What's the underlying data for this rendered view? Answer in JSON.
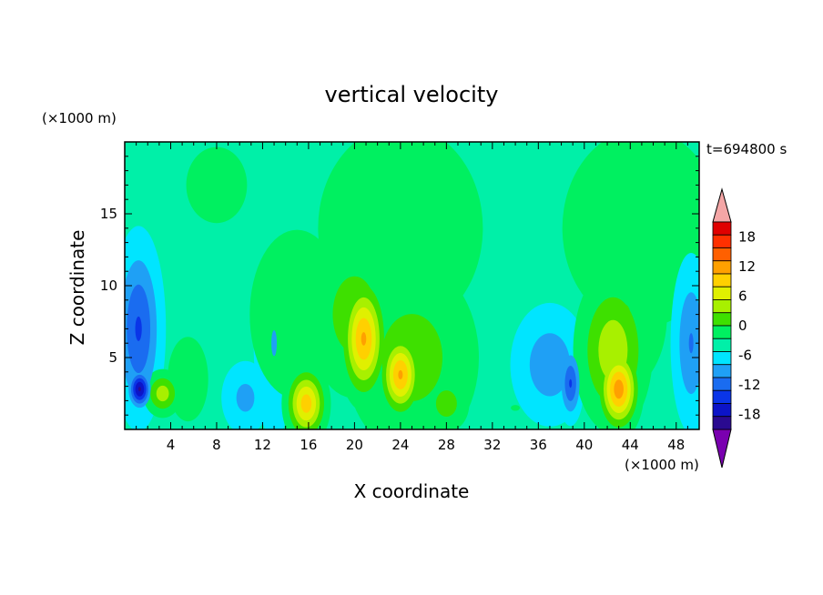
{
  "chart_data": {
    "type": "heatmap",
    "title": "vertical velocity",
    "xlabel": "X coordinate",
    "ylabel": "Z coordinate",
    "x_unit": "(×1000 m)",
    "y_unit": "(×1000 m)",
    "time_label": "t=694800 s",
    "xlim": [
      0,
      50
    ],
    "ylim": [
      0,
      20
    ],
    "x_ticks": [
      4,
      8,
      12,
      16,
      20,
      24,
      28,
      32,
      36,
      40,
      44,
      48
    ],
    "y_ticks": [
      5,
      10,
      15
    ],
    "colorbar": {
      "ticks": [
        18,
        12,
        6,
        0,
        -6,
        -12,
        -18
      ],
      "colors": [
        "#7a00b0",
        "#2a0a90",
        "#0c14c8",
        "#0a35e8",
        "#1a6cf0",
        "#1fa0f5",
        "#00e5ff",
        "#00f0a8",
        "#00f060",
        "#3ee000",
        "#a8f000",
        "#e0f000",
        "#ffd000",
        "#ffa000",
        "#ff6000",
        "#ff3000",
        "#e00000",
        "#f4a6a6"
      ],
      "base_index": 6
    },
    "field": {
      "background_level": 1,
      "background_color_index": 7,
      "blobs": [
        {
          "x": 1.2,
          "z": 7.0,
          "sx": 1.2,
          "sz": 3.6,
          "a": -3.6
        },
        {
          "x": 1.3,
          "z": 2.8,
          "sx": 0.6,
          "sz": 0.8,
          "a": -5.5
        },
        {
          "x": 3.3,
          "z": 2.5,
          "sx": 0.9,
          "sz": 0.9,
          "a": 3.0
        },
        {
          "x": 5.5,
          "z": 3.5,
          "sx": 1.5,
          "sz": 2.5,
          "a": 1.0
        },
        {
          "x": 10.5,
          "z": 2.2,
          "sx": 1.3,
          "sz": 1.6,
          "a": -1.8
        },
        {
          "x": 13.0,
          "z": 6.0,
          "sx": 1.2,
          "sz": 4.5,
          "a": -1.5
        },
        {
          "x": 15.8,
          "z": 1.8,
          "sx": 1.0,
          "sz": 1.4,
          "a": 5.0
        },
        {
          "x": 15.0,
          "z": 8.0,
          "sx": 3.5,
          "sz": 5.0,
          "a": 1.0
        },
        {
          "x": 20.8,
          "z": 6.3,
          "sx": 1.1,
          "sz": 2.3,
          "a": 5.5
        },
        {
          "x": 20.0,
          "z": 8.0,
          "sx": 2.5,
          "sz": 3.5,
          "a": 2.0
        },
        {
          "x": 24.0,
          "z": 3.8,
          "sx": 1.0,
          "sz": 1.6,
          "a": 5.5
        },
        {
          "x": 25.0,
          "z": 5.0,
          "sx": 3.5,
          "sz": 4.0,
          "a": 2.0
        },
        {
          "x": 28.0,
          "z": 1.8,
          "sx": 1.2,
          "sz": 1.2,
          "a": 2.0
        },
        {
          "x": 24.0,
          "z": 14.0,
          "sx": 5.0,
          "sz": 5.0,
          "a": 1.4
        },
        {
          "x": 37.0,
          "z": 4.5,
          "sx": 2.0,
          "sz": 2.5,
          "a": -2.2
        },
        {
          "x": 38.8,
          "z": 3.2,
          "sx": 0.6,
          "sz": 1.5,
          "a": -3.5
        },
        {
          "x": 43.0,
          "z": 2.8,
          "sx": 1.0,
          "sz": 1.6,
          "a": 6.0
        },
        {
          "x": 42.5,
          "z": 5.5,
          "sx": 1.8,
          "sz": 3.0,
          "a": 3.2
        },
        {
          "x": 43.5,
          "z": 8.0,
          "sx": 2.5,
          "sz": 3.5,
          "a": 1.5
        },
        {
          "x": 45.0,
          "z": 14.0,
          "sx": 5.0,
          "sz": 5.0,
          "a": 1.3
        },
        {
          "x": 49.3,
          "z": 6.0,
          "sx": 1.0,
          "sz": 3.5,
          "a": -2.5
        },
        {
          "x": 34.0,
          "z": 1.5,
          "sx": 2.0,
          "sz": 1.0,
          "a": 0.5
        },
        {
          "x": 8.0,
          "z": 17.0,
          "sx": 2.0,
          "sz": 2.0,
          "a": 1.2
        }
      ]
    }
  }
}
